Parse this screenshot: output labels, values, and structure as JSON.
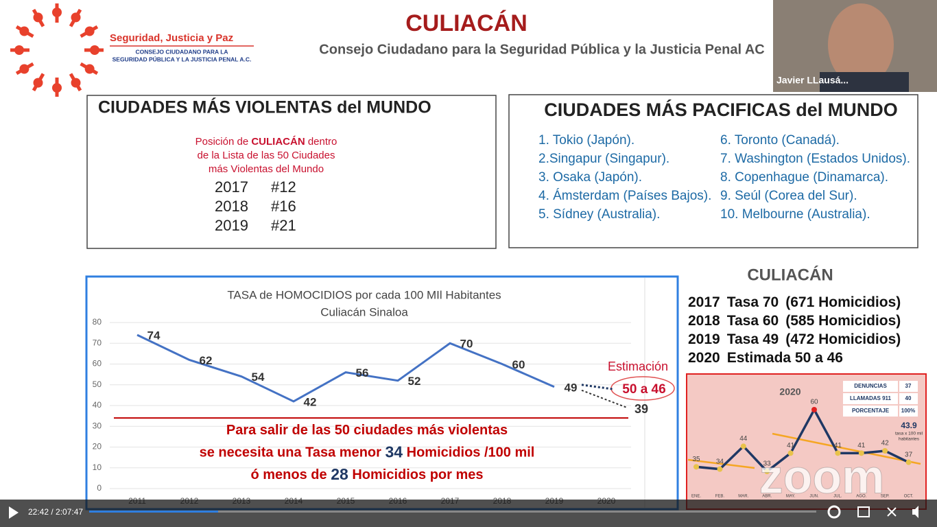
{
  "header": {
    "logo_title": "Seguridad, Justicia y Paz",
    "logo_subtitle": [
      "CONSEJO CIUDADANO PARA LA",
      "SEGURIDAD PÚBLICA Y LA JUSTICIA PENAL A.C."
    ],
    "title": "CULIACÁN",
    "subtitle": "Consejo Ciudadano para la Seguridad Pública y la Justicia Penal AC"
  },
  "participant": {
    "name": "Javier LLausá..."
  },
  "violent_box": {
    "title": "CIUDADES MÁS VIOLENTAS del MUNDO",
    "caption": [
      [
        "Posición de ",
        "CULIACÁN",
        " dentro"
      ],
      [
        "de la Lista de las 50 Ciudades"
      ],
      [
        "más Violentas del Mundo"
      ]
    ],
    "rows": [
      [
        "2017",
        "#12"
      ],
      [
        "2018",
        "#16"
      ],
      [
        "2019",
        "#21"
      ]
    ]
  },
  "peaceful_box": {
    "title": "CIUDADES MÁS PACIFICAS del MUNDO",
    "items": [
      "1. Tokio (Japón).",
      "2.Singapur (Singapur).",
      "3. Osaka (Japón).",
      "4. Ámsterdam (Países Bajos).",
      "5. Sídney (Australia).",
      "6. Toronto (Canadá).",
      "7. Washington (Estados Unidos).",
      "8. Copenhague (Dinamarca).",
      "9. Seúl (Corea del Sur).",
      "10. Melbourne (Australia)."
    ]
  },
  "chart_data": {
    "type": "line",
    "title": [
      "TASA de HOMOCIDIOS por cada 100 MIl Habitantes",
      "Culiacán Sinaloa"
    ],
    "categories": [
      "2011",
      "2012",
      "2013",
      "2014",
      "2015",
      "2016",
      "2017",
      "2018",
      "2019",
      "2020"
    ],
    "values": [
      74,
      62,
      54,
      42,
      56,
      52,
      70,
      60,
      49,
      null
    ],
    "color": "#4472c4",
    "ylim": [
      0,
      80
    ],
    "yticks": [
      0,
      10,
      20,
      30,
      40,
      50,
      60,
      70,
      80
    ],
    "estimate_title": "Estimación",
    "estimate_label": "50 a 46",
    "projection": 39,
    "threshold": 34,
    "monthly": 28,
    "message": [
      [
        "Para salir de las 50 ciudades más violentas"
      ],
      [
        "se necesita una Tasa menor ",
        " Homicidios /100 mil"
      ],
      [
        "ó menos de ",
        " Homicidios por mes"
      ]
    ]
  },
  "summary": {
    "title": "CULIACÁN",
    "rows": [
      [
        "2017",
        "Tasa 70",
        "(671 Homicidios)"
      ],
      [
        "2018",
        "Tasa 60",
        "(585 Homicidios)"
      ],
      [
        "2019",
        "Tasa 49",
        "(472 Homicidios)"
      ],
      [
        "2020",
        "Estimada 50 a 46",
        ""
      ]
    ]
  },
  "mini_chart": {
    "type": "line",
    "title": "2020",
    "categories": [
      "ENE.",
      "FEB.",
      "MAR.",
      "ABR.",
      "MAY.",
      "JUN.",
      "JUL.",
      "AGO.",
      "SEP.",
      "OCT."
    ],
    "values": [
      35,
      34,
      44,
      33,
      41,
      60,
      41,
      41,
      42,
      37
    ],
    "table": [
      [
        "DENUNCIAS",
        "37"
      ],
      [
        "LLAMADAS 911",
        "40"
      ],
      [
        "PORCENTAJE",
        "100%"
      ]
    ],
    "rate": "43.9",
    "rate_note": [
      "tasa x 100 mil",
      "habitantes"
    ]
  },
  "watermark": "zoom",
  "player": {
    "time": "22:42 / 2:07:47"
  }
}
